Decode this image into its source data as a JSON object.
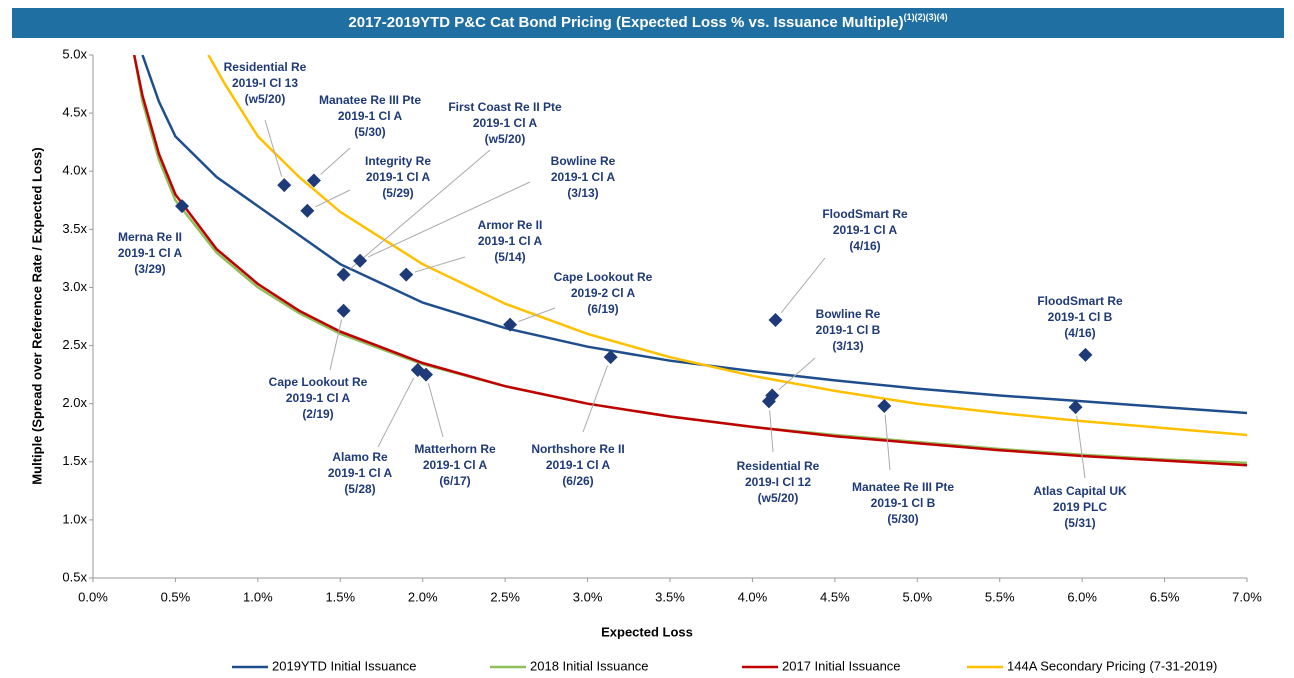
{
  "chart_data": {
    "type": "scatter",
    "title": "2017-2019YTD P&C Cat Bond Pricing (Expected Loss % vs. Issuance Multiple)",
    "title_notes": "(1)(2)(3)(4)",
    "x_label": "Expected Loss",
    "y_label": "Multiple  (Spread over Reference Rate / Expected Loss)",
    "xlim": [
      0,
      7
    ],
    "ylim": [
      0.5,
      5
    ],
    "xticks": [
      {
        "value": 0,
        "label": "0.0%"
      },
      {
        "value": 0.5,
        "label": "0.5%"
      },
      {
        "value": 1,
        "label": "1.0%"
      },
      {
        "value": 1.5,
        "label": "1.5%"
      },
      {
        "value": 2,
        "label": "2.0%"
      },
      {
        "value": 2.5,
        "label": "2.5%"
      },
      {
        "value": 3,
        "label": "3.0%"
      },
      {
        "value": 3.5,
        "label": "3.5%"
      },
      {
        "value": 4,
        "label": "4.0%"
      },
      {
        "value": 4.5,
        "label": "4.5%"
      },
      {
        "value": 5,
        "label": "5.0%"
      },
      {
        "value": 5.5,
        "label": "5.5%"
      },
      {
        "value": 6,
        "label": "6.0%"
      },
      {
        "value": 6.5,
        "label": "6.5%"
      },
      {
        "value": 7,
        "label": "7.0%"
      }
    ],
    "yticks": [
      {
        "value": 0.5,
        "label": "0.5x"
      },
      {
        "value": 1,
        "label": "1.0x"
      },
      {
        "value": 1.5,
        "label": "1.5x"
      },
      {
        "value": 2,
        "label": "2.0x"
      },
      {
        "value": 2.5,
        "label": "2.5x"
      },
      {
        "value": 3,
        "label": "3.0x"
      },
      {
        "value": 3.5,
        "label": "3.5x"
      },
      {
        "value": 4,
        "label": "4.0x"
      },
      {
        "value": 4.5,
        "label": "4.5x"
      },
      {
        "value": 5,
        "label": "5.0x"
      }
    ],
    "series": [
      {
        "name": "2019YTD Initial Issuance",
        "color": "#1f4e8c",
        "x": [
          0.3,
          0.4,
          0.5,
          0.75,
          1,
          1.25,
          1.5,
          2,
          2.5,
          3,
          3.5,
          4,
          4.5,
          5,
          5.5,
          6,
          6.5,
          7
        ],
        "values": [
          5.0,
          4.6,
          4.3,
          3.95,
          3.7,
          3.45,
          3.2,
          2.87,
          2.65,
          2.49,
          2.37,
          2.28,
          2.2,
          2.13,
          2.07,
          2.02,
          1.97,
          1.92
        ]
      },
      {
        "name": "2018 Initial Issuance",
        "color": "#8fbf5a",
        "x": [
          0.25,
          0.3,
          0.4,
          0.5,
          0.75,
          1,
          1.25,
          1.5,
          2,
          2.5,
          3,
          3.5,
          4,
          4.5,
          5,
          5.5,
          6,
          6.5,
          7
        ],
        "values": [
          5.0,
          4.6,
          4.1,
          3.75,
          3.3,
          3.0,
          2.78,
          2.6,
          2.34,
          2.15,
          2.0,
          1.89,
          1.8,
          1.73,
          1.67,
          1.61,
          1.56,
          1.52,
          1.49
        ]
      },
      {
        "name": "2017 Initial Issuance",
        "color": "#c00000",
        "x": [
          0.25,
          0.3,
          0.4,
          0.5,
          0.75,
          1,
          1.25,
          1.5,
          2,
          2.5,
          3,
          3.5,
          4,
          4.5,
          5,
          5.5,
          6,
          6.5,
          7
        ],
        "values": [
          5.0,
          4.65,
          4.15,
          3.8,
          3.33,
          3.03,
          2.8,
          2.62,
          2.35,
          2.15,
          2.0,
          1.89,
          1.8,
          1.72,
          1.66,
          1.6,
          1.55,
          1.51,
          1.47
        ]
      },
      {
        "name": "144A Secondary Pricing (7-31-2019)",
        "color": "#ffc000",
        "x": [
          0.7,
          0.8,
          1,
          1.25,
          1.5,
          2,
          2.5,
          3,
          3.5,
          4,
          4.5,
          5,
          5.5,
          6,
          6.5,
          7
        ],
        "values": [
          5.0,
          4.75,
          4.3,
          3.95,
          3.65,
          3.2,
          2.86,
          2.6,
          2.4,
          2.24,
          2.11,
          2.0,
          1.92,
          1.85,
          1.79,
          1.73
        ]
      }
    ],
    "points": {
      "color": "#1f3a78",
      "x": [
        0.54,
        1.16,
        1.34,
        1.3,
        1.52,
        1.62,
        1.9,
        2.53,
        1.52,
        1.97,
        2.02,
        3.14,
        4.14,
        4.12,
        4.1,
        4.8,
        6.02,
        5.96
      ],
      "values": [
        3.7,
        3.88,
        3.92,
        3.66,
        3.11,
        3.23,
        3.11,
        2.68,
        2.8,
        2.29,
        2.25,
        2.4,
        2.72,
        2.07,
        2.02,
        1.98,
        2.42,
        1.97
      ],
      "labels": [
        [
          "Merna Re II",
          "2019-1 Cl A",
          "(3/29)"
        ],
        [
          "Residential Re",
          "2019-I Cl 13",
          "(w5/20)"
        ],
        [
          "Manatee Re III Pte",
          "2019-1 Cl A",
          "(5/30)"
        ],
        [
          "Integrity Re",
          "2019-1 Cl A",
          "(5/29)"
        ],
        [
          "First Coast Re II Pte",
          "2019-1 Cl A",
          "(w5/20)"
        ],
        [
          "Bowline Re",
          "2019-1 Cl A",
          "(3/13)"
        ],
        [
          "Armor  Re II",
          "2019-1 Cl A",
          "(5/14)"
        ],
        [
          "Cape Lookout Re",
          "2019-2 Cl A",
          "(6/19)"
        ],
        [
          "Cape Lookout Re",
          "2019-1 Cl A",
          "(2/19)"
        ],
        [
          "Alamo  Re",
          "2019-1 Cl A",
          "(5/28)"
        ],
        [
          "Matterhorn Re",
          "2019-1 Cl A",
          "(6/17)"
        ],
        [
          "Northshore Re II",
          "2019-1 Cl A",
          "(6/26)"
        ],
        [
          "FloodSmart Re",
          "2019-1 Cl A",
          "(4/16)"
        ],
        [
          "Bowline Re",
          "2019-1 Cl B",
          "(3/13)"
        ],
        [
          "Residential Re",
          "2019-I Cl 12",
          "(w5/20)"
        ],
        [
          "Manatee Re III Pte",
          "2019-1 Cl B",
          "(5/30)"
        ],
        [
          "FloodSmart Re",
          "2019-1 Cl B",
          "(4/16)"
        ],
        [
          "Atlas Capital UK",
          "2019 PLC",
          "(5/31)"
        ]
      ]
    }
  }
}
